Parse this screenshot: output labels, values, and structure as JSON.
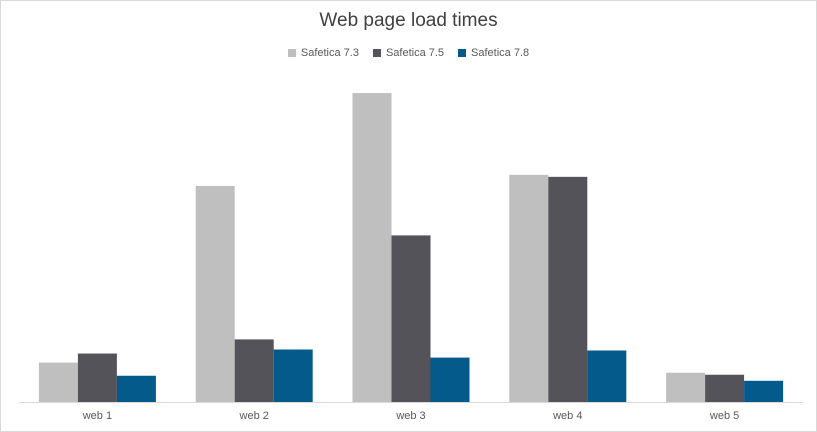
{
  "chart_data": {
    "type": "bar",
    "title": "Web page load times",
    "categories": [
      "web 1",
      "web 2",
      "web 3",
      "web 4",
      "web 5"
    ],
    "series": [
      {
        "name": "Safetica 7.3",
        "color": "#bfbfbf",
        "values": [
          39,
          214,
          306,
          225,
          29
        ]
      },
      {
        "name": "Safetica 7.5",
        "color": "#545359",
        "values": [
          48,
          62,
          165,
          223,
          27
        ]
      },
      {
        "name": "Safetica 7.8",
        "color": "#055a8c",
        "values": [
          26,
          52,
          44,
          51,
          21
        ]
      }
    ],
    "ylim": [
      0,
      310
    ],
    "grid": false,
    "legend_position": "top"
  }
}
